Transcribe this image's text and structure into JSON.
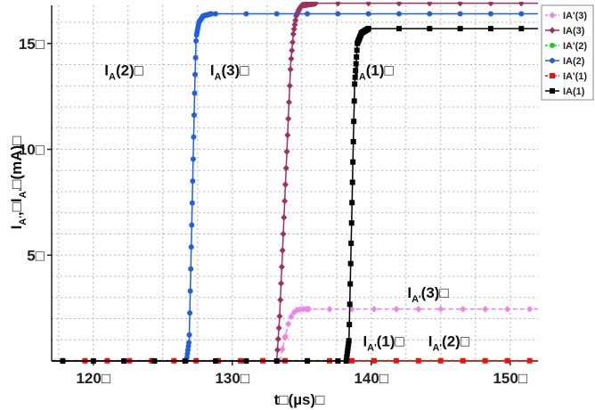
{
  "chart_data": {
    "type": "line",
    "title": "",
    "xlabel": "t□(µs)□",
    "ylabel_prefix": "I",
    "ylabel_sub1": "A'",
    "ylabel_mid": ",□I",
    "ylabel_sub2": "A'",
    "ylabel_suffix": "□(mA)□",
    "xlim": [
      117,
      152
    ],
    "ylim": [
      0,
      16.8
    ],
    "x_ticks": [
      120,
      130,
      140,
      150
    ],
    "x_tick_labels": [
      "120□",
      "130□",
      "140□",
      "150□"
    ],
    "y_ticks": [
      5,
      10,
      15
    ],
    "y_tick_labels": [
      "5□",
      "10□",
      "15□"
    ],
    "grid": true,
    "legend_position": "top-right",
    "legend": [
      "IA'(3)",
      "IA(3)",
      "IA'(2)",
      "IA(2)",
      "IA'(1)",
      "IA(1)"
    ],
    "series": [
      {
        "name": "IA'(3)",
        "color": "#ee82ee",
        "marker": "diamond",
        "dashed": true,
        "x": [
          117,
          133.4,
          133.7,
          134.0,
          134.3,
          134.6,
          135.0,
          135.5,
          152
        ],
        "y": [
          0,
          0,
          0.8,
          1.7,
          2.2,
          2.4,
          2.45,
          2.45,
          2.45
        ]
      },
      {
        "name": "IA(3)",
        "color": "#a0305e",
        "marker": "diamond",
        "dashed": false,
        "x": [
          117,
          133.2,
          133.4,
          133.6,
          133.8,
          134.0,
          134.2,
          134.4,
          134.6,
          134.8,
          135.0,
          136,
          152
        ],
        "y": [
          0,
          0,
          2,
          5,
          8,
          11,
          14,
          15.5,
          16.3,
          16.6,
          16.8,
          16.9,
          16.9
        ]
      },
      {
        "name": "IA'(2)",
        "color": "#22cc22",
        "marker": "circle",
        "dashed": true,
        "x": [
          117,
          152
        ],
        "y": [
          0.02,
          0.02
        ]
      },
      {
        "name": "IA(2)",
        "color": "#1f5fe0",
        "marker": "circle",
        "dashed": false,
        "x": [
          117,
          126.7,
          126.9,
          127.0,
          127.1,
          127.2,
          127.3,
          127.4,
          127.6,
          127.9,
          128.5,
          152
        ],
        "y": [
          0,
          0,
          1,
          4,
          7,
          10,
          13,
          15.3,
          16.0,
          16.3,
          16.4,
          16.4
        ]
      },
      {
        "name": "IA'(1)",
        "color": "#ee1111",
        "marker": "square",
        "dashed": true,
        "x": [
          117,
          152
        ],
        "y": [
          0.01,
          0.01
        ]
      },
      {
        "name": "IA(1)",
        "color": "#000000",
        "marker": "square",
        "dashed": false,
        "x": [
          117,
          138.2,
          138.4,
          138.5,
          138.6,
          138.7,
          138.8,
          139.0,
          139.3,
          139.8,
          152
        ],
        "y": [
          0,
          0,
          1,
          4,
          7,
          10,
          13,
          15.0,
          15.5,
          15.7,
          15.7
        ]
      }
    ],
    "annotations": [
      {
        "main": "I",
        "sub": "A",
        "tail": "(2)□",
        "x": 120.8,
        "y": 13.5
      },
      {
        "main": "I",
        "sub": "A",
        "tail": "(3)□",
        "x": 128.4,
        "y": 13.5
      },
      {
        "main": "I",
        "sub": "A",
        "tail": "(1)□",
        "x": 138.8,
        "y": 13.5
      },
      {
        "main": "I",
        "sub": "A'",
        "tail": "(3)□",
        "x": 142.6,
        "y": 3.0
      },
      {
        "main": "I",
        "sub": "A'",
        "tail": "(1)□",
        "x": 139.4,
        "y": 0.7
      },
      {
        "main": "I",
        "sub": "A'",
        "tail": "(2)□",
        "x": 144.1,
        "y": 0.7
      }
    ]
  }
}
